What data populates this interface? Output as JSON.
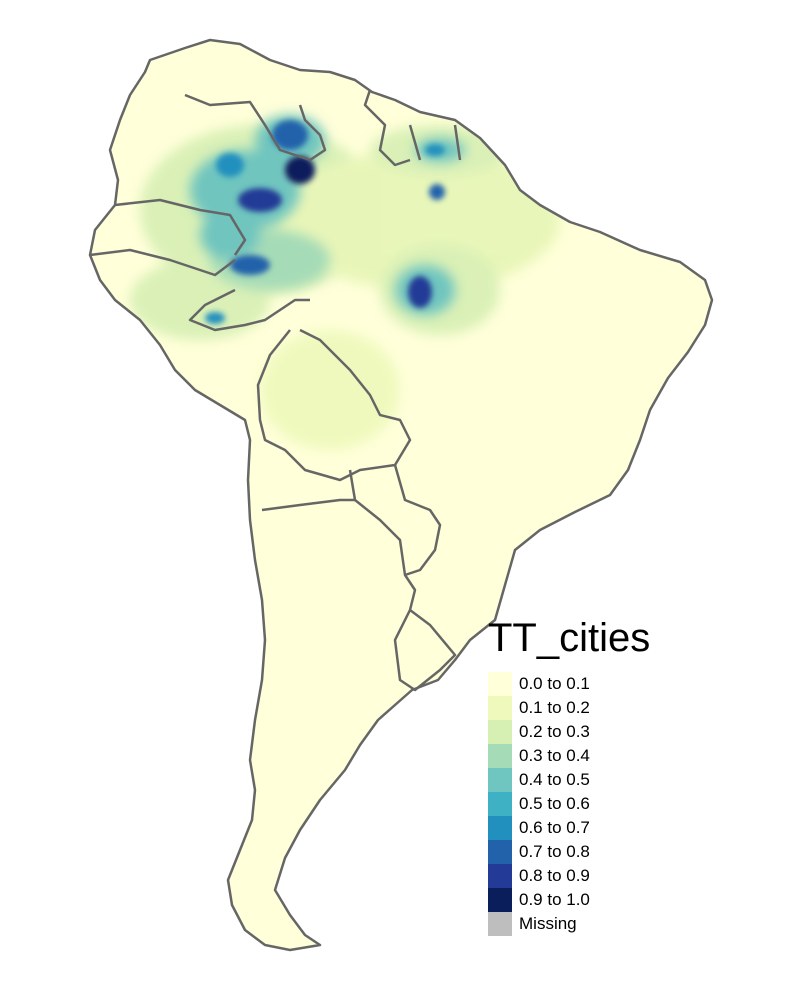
{
  "legend": {
    "title": "TT_cities",
    "items": [
      {
        "label": "0.0 to 0.1",
        "color": "#ffffd9"
      },
      {
        "label": "0.1 to 0.2",
        "color": "#eef9bb"
      },
      {
        "label": "0.2 to 0.3",
        "color": "#d6efb3"
      },
      {
        "label": "0.3 to 0.4",
        "color": "#a5dbb7"
      },
      {
        "label": "0.4 to 0.5",
        "color": "#6fc5bf"
      },
      {
        "label": "0.5 to 0.6",
        "color": "#3fb1c4"
      },
      {
        "label": "0.6 to 0.7",
        "color": "#2190be"
      },
      {
        "label": "0.7 to 0.8",
        "color": "#2262ab"
      },
      {
        "label": "0.8 to 0.9",
        "color": "#233b96"
      },
      {
        "label": "0.9 to 1.0",
        "color": "#0b1e5c"
      },
      {
        "label": "Missing",
        "color": "#bebebe"
      }
    ]
  },
  "map": {
    "region": "South America",
    "border_color": "#666666"
  }
}
